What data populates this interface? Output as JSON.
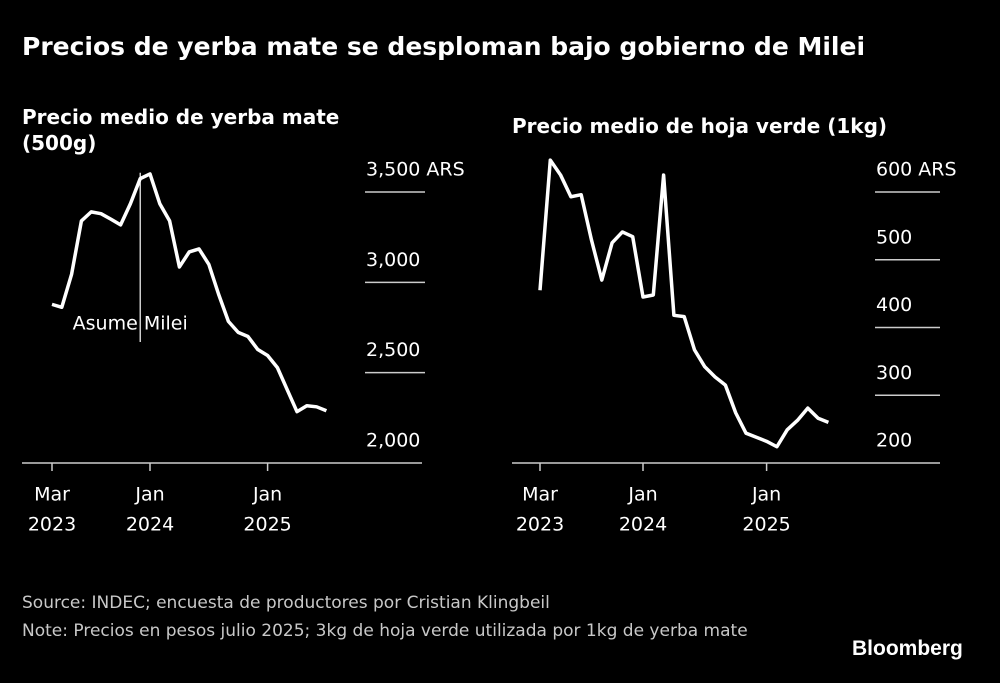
{
  "title": "Precios de yerba mate se desploman bajo gobierno de Milei",
  "source": "Source: INDEC; encuesta de productores por Cristian Klingbeil",
  "note": "Note: Precios en pesos julio 2025; 3kg de hoja verde utilizada por 1kg de yerba mate",
  "logo": "Bloomberg",
  "chart_data": [
    {
      "type": "line",
      "title": "Precio medio de yerba mate (500g)",
      "color": "#ffffff",
      "x": [
        "2023-03",
        "2023-04",
        "2023-05",
        "2023-06",
        "2023-07",
        "2023-08",
        "2023-09",
        "2023-10",
        "2023-11",
        "2023-12",
        "2024-01",
        "2024-02",
        "2024-03",
        "2024-04",
        "2024-05",
        "2024-06",
        "2024-07",
        "2024-08",
        "2024-09",
        "2024-10",
        "2024-11",
        "2024-12",
        "2025-01",
        "2025-02",
        "2025-03",
        "2025-04",
        "2025-05",
        "2025-06",
        "2025-07"
      ],
      "values": [
        2878,
        2862,
        3045,
        3340,
        3390,
        3380,
        3350,
        3318,
        3435,
        3574,
        3600,
        3435,
        3340,
        3085,
        3168,
        3185,
        3100,
        2934,
        2784,
        2723,
        2700,
        2628,
        2595,
        2528,
        2406,
        2284,
        2317,
        2311,
        2289
      ],
      "ylim": [
        2000,
        3800
      ],
      "yticks": [
        {
          "value": 2000,
          "label": "2,000"
        },
        {
          "value": 2500,
          "label": "2,500"
        },
        {
          "value": 3000,
          "label": "3,000"
        },
        {
          "value": 3500,
          "label": "3,500 ARS"
        }
      ],
      "xticks": [
        {
          "value": "2023-03",
          "label": [
            "Mar",
            "2023"
          ]
        },
        {
          "value": "2024-01",
          "label": [
            "Jan",
            "2024"
          ]
        },
        {
          "value": "2025-01",
          "label": [
            "Jan",
            "2025"
          ]
        }
      ],
      "annotation": {
        "text": "Asume Milei",
        "x": "2023-12"
      }
    },
    {
      "type": "line",
      "title": "Precio medio de hoja verde (1kg)",
      "color": "#ffffff",
      "x": [
        "2023-03",
        "2023-04",
        "2023-05",
        "2023-06",
        "2023-07",
        "2023-08",
        "2023-09",
        "2023-10",
        "2023-11",
        "2023-12",
        "2024-01",
        "2024-02",
        "2024-03",
        "2024-04",
        "2024-05",
        "2024-06",
        "2024-07",
        "2024-08",
        "2024-09",
        "2024-10",
        "2024-11",
        "2024-12",
        "2025-01",
        "2025-02",
        "2025-03",
        "2025-04",
        "2025-05",
        "2025-06",
        "2025-07"
      ],
      "values": [
        455,
        647,
        625,
        593,
        596,
        529,
        470,
        525,
        541,
        534,
        445,
        448,
        625,
        418,
        416,
        367,
        342,
        327,
        315,
        274,
        244,
        238,
        232,
        224,
        249,
        263,
        281,
        266,
        260
      ],
      "ylim": [
        200,
        650
      ],
      "yticks": [
        200,
        300,
        400,
        500,
        {
          "value": 600,
          "label": "600 ARS"
        }
      ],
      "xticks": [
        {
          "value": "2023-03",
          "label": [
            "Mar",
            "2023"
          ]
        },
        {
          "value": "2024-01",
          "label": [
            "Jan",
            "2024"
          ]
        },
        {
          "value": "2025-01",
          "label": [
            "Jan",
            "2025"
          ]
        }
      ]
    }
  ]
}
